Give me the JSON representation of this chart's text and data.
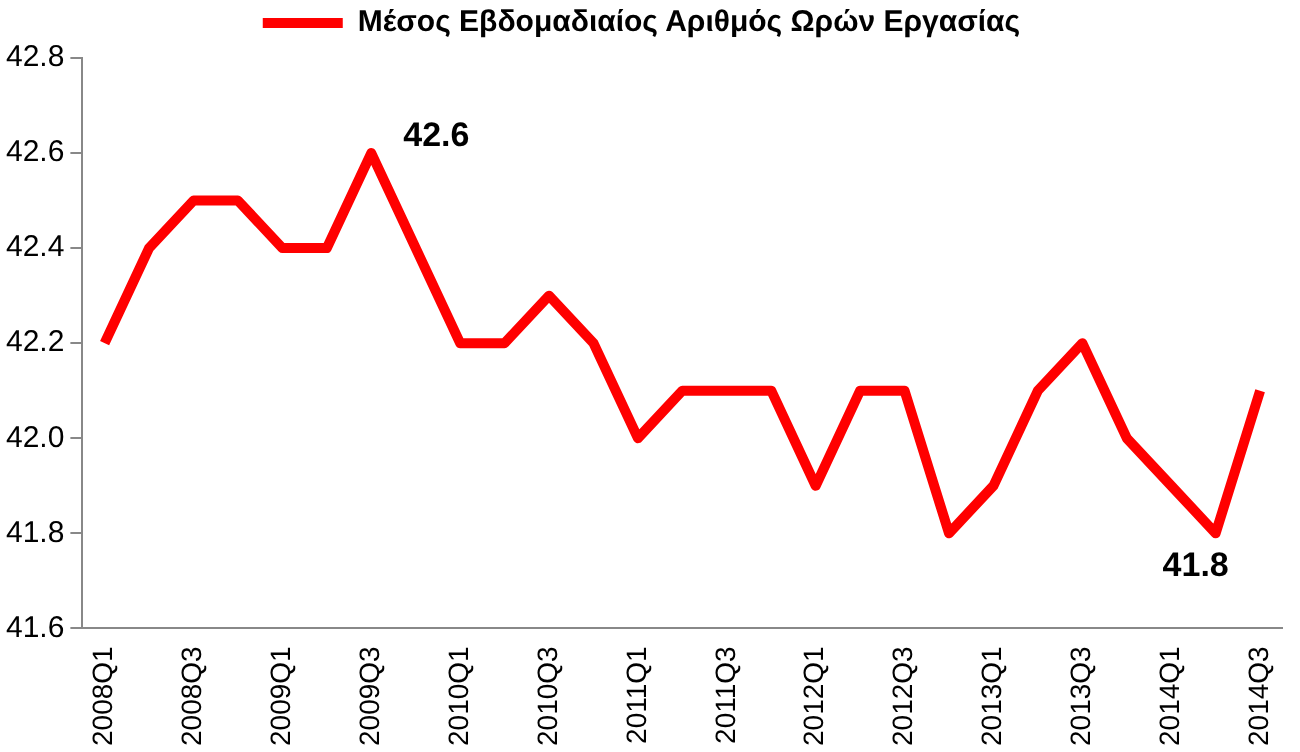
{
  "chart_data": {
    "type": "line",
    "categories": [
      "2008Q1",
      null,
      "2008Q3",
      null,
      "2009Q1",
      null,
      "2009Q3",
      null,
      "2010Q1",
      null,
      "2010Q3",
      null,
      "2011Q1",
      null,
      "2011Q3",
      null,
      "2012Q1",
      null,
      "2012Q3",
      null,
      "2013Q1",
      null,
      "2013Q3",
      null,
      "2014Q1",
      null,
      "2014Q3"
    ],
    "series": [
      {
        "name": "Μέσος Εβδομαδιαίος Αριθμός Ωρών Εργασίας",
        "color": "#ff0000",
        "values": [
          42.2,
          42.4,
          42.5,
          42.5,
          42.4,
          42.4,
          42.6,
          42.4,
          42.2,
          42.2,
          42.3,
          42.2,
          42.0,
          42.1,
          42.1,
          42.1,
          41.9,
          42.1,
          42.1,
          41.8,
          41.9,
          42.1,
          42.2,
          42.0,
          41.9,
          41.8,
          42.1
        ],
        "value_labels": [
          null,
          null,
          null,
          null,
          null,
          null,
          "42.6",
          null,
          null,
          null,
          null,
          null,
          null,
          null,
          null,
          null,
          null,
          null,
          null,
          null,
          null,
          null,
          null,
          null,
          null,
          "41.8",
          null
        ]
      }
    ],
    "ylim": [
      41.6,
      42.8
    ],
    "yticks": [
      {
        "value": 41.6,
        "label": "41.6"
      },
      {
        "value": 41.8,
        "label": "41.8"
      },
      {
        "value": 42.0,
        "label": "42.0"
      },
      {
        "value": 42.2,
        "label": "42.2"
      },
      {
        "value": 42.4,
        "label": "42.4"
      },
      {
        "value": 42.6,
        "label": "42.6"
      },
      {
        "value": 42.8,
        "label": "42.8"
      }
    ],
    "grid": false,
    "legend": "top",
    "marker": "none",
    "line_style": "solid"
  }
}
